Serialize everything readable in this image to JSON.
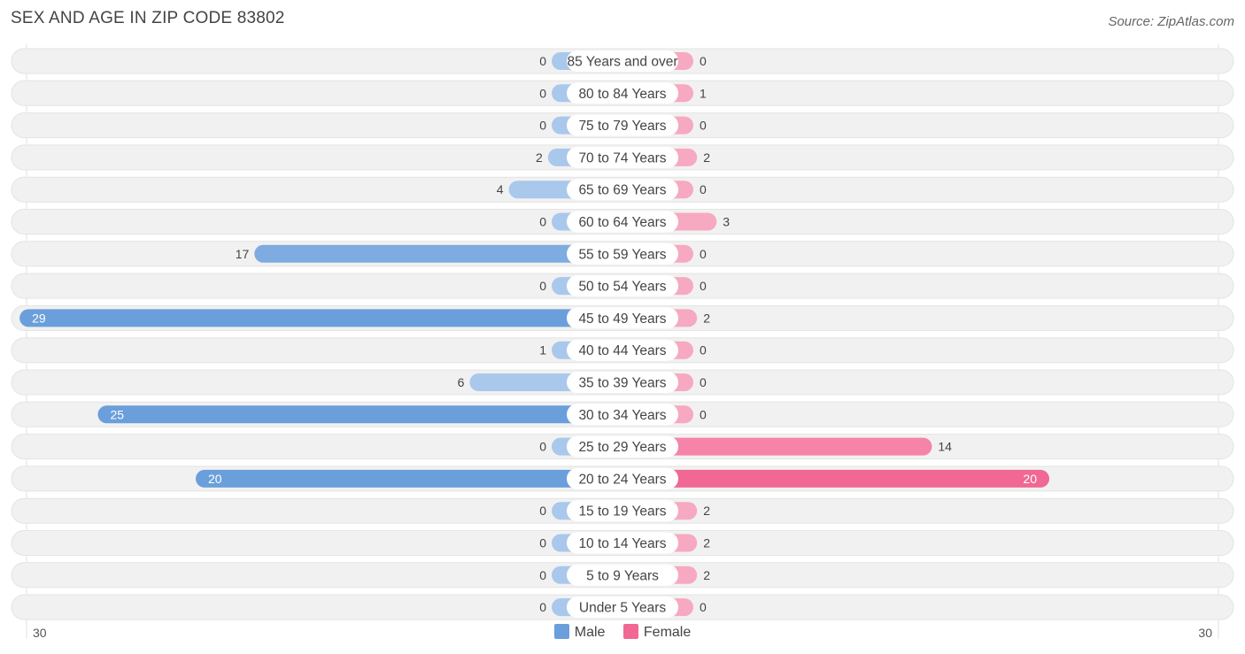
{
  "title": "SEX AND AGE IN ZIP CODE 83802",
  "source": "Source: ZipAtlas.com",
  "colors": {
    "male_light": "#a9c8ec",
    "male_dark": "#6a9fdb",
    "female_light": "#f6a9c0",
    "female_dark": "#f06893",
    "row_bg": "#f1f1f1",
    "label_bg": "#ffffff"
  },
  "legend": {
    "male_label": "Male",
    "female_label": "Female"
  },
  "axis": {
    "left_label": "30",
    "right_label": "30"
  },
  "chart_data": {
    "type": "bar",
    "orientation": "horizontal-diverging",
    "xlim": [
      -30,
      30
    ],
    "categories": [
      "85 Years and over",
      "80 to 84 Years",
      "75 to 79 Years",
      "70 to 74 Years",
      "65 to 69 Years",
      "60 to 64 Years",
      "55 to 59 Years",
      "50 to 54 Years",
      "45 to 49 Years",
      "40 to 44 Years",
      "35 to 39 Years",
      "30 to 34 Years",
      "25 to 29 Years",
      "20 to 24 Years",
      "15 to 19 Years",
      "10 to 14 Years",
      "5 to 9 Years",
      "Under 5 Years"
    ],
    "series": [
      {
        "name": "Male",
        "values": [
          0,
          0,
          0,
          2,
          4,
          0,
          17,
          0,
          29,
          1,
          6,
          25,
          0,
          20,
          0,
          0,
          0,
          0
        ]
      },
      {
        "name": "Female",
        "values": [
          0,
          1,
          0,
          2,
          0,
          3,
          0,
          0,
          2,
          0,
          0,
          0,
          14,
          20,
          2,
          2,
          2,
          0
        ]
      }
    ],
    "legend_position": "bottom-center"
  }
}
